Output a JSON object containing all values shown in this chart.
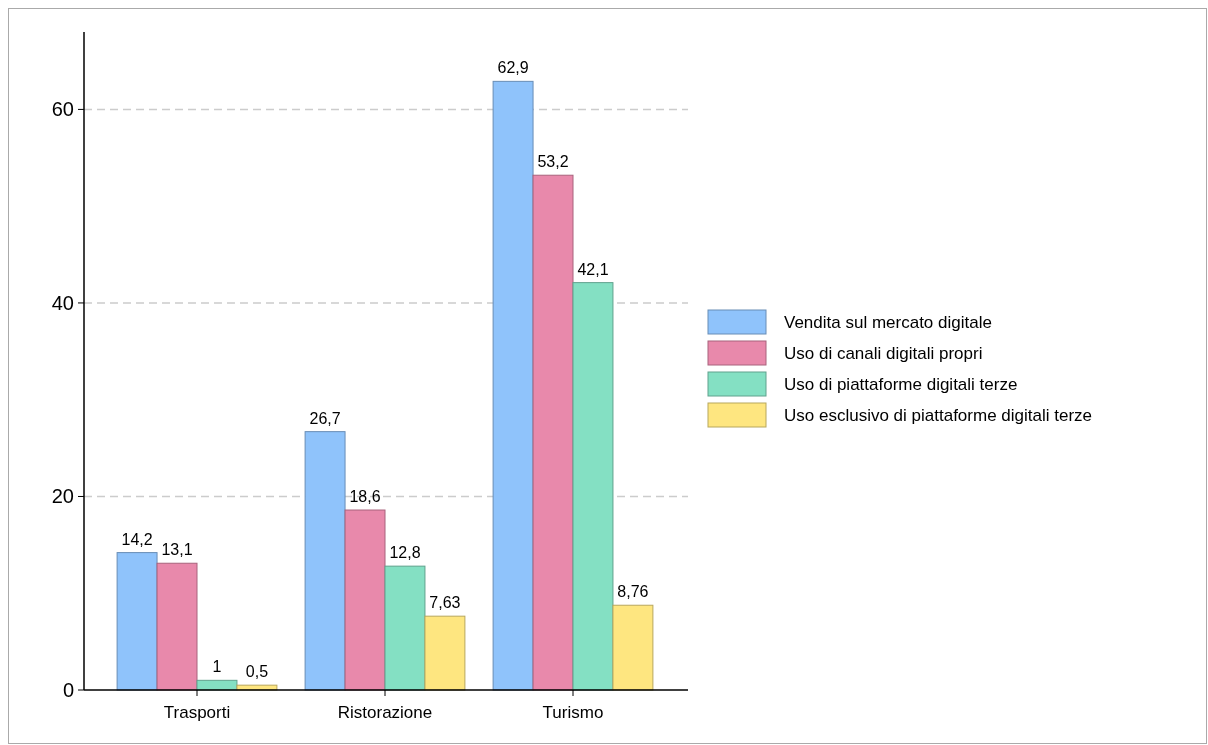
{
  "chart_data": {
    "type": "bar",
    "categories": [
      "Trasporti",
      "Ristorazione",
      "Turismo"
    ],
    "series": [
      {
        "name": "Vendita sul mercato digitale",
        "color": "#8fc3fb",
        "values": [
          14.2,
          26.7,
          62.9
        ],
        "value_labels": [
          "14,2",
          "26,7",
          "62,9"
        ]
      },
      {
        "name": "Uso di canali digitali propri",
        "color": "#e889ab",
        "values": [
          13.1,
          18.6,
          53.2
        ],
        "value_labels": [
          "13,1",
          "18,6",
          "53,2"
        ]
      },
      {
        "name": "Uso di piattaforme digitali terze",
        "color": "#84e0c3",
        "values": [
          1,
          12.8,
          42.1
        ],
        "value_labels": [
          "1",
          "12,8",
          "42,1"
        ]
      },
      {
        "name": "Uso esclusivo di piattaforme digitali terze",
        "color": "#fee680",
        "values": [
          0.5,
          7.63,
          8.76
        ],
        "value_labels": [
          "0,5",
          "7,63",
          "8,76"
        ]
      }
    ],
    "ylim": [
      0,
      68
    ],
    "yticks": [
      0,
      20,
      40,
      60
    ],
    "grid": "y",
    "legend": "right"
  }
}
